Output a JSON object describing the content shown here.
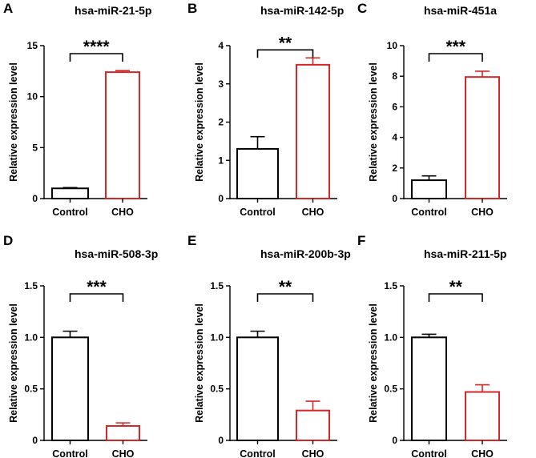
{
  "figure": {
    "colors": {
      "control": "#000000",
      "cho": "#d62728",
      "axis": "#000000"
    }
  },
  "chart_data": [
    {
      "panel": "A",
      "type": "bar",
      "title": "hsa-miR-21-5p",
      "ylabel": "Relative expression level",
      "categories": [
        "Control",
        "CHO"
      ],
      "values": [
        1.0,
        12.4
      ],
      "errors": [
        0.08,
        0.15
      ],
      "ylim": [
        0,
        15
      ],
      "yticks": [
        0,
        5,
        10,
        15
      ],
      "ytick_labels": [
        "0",
        "5",
        "10",
        "15"
      ],
      "significance": "****"
    },
    {
      "panel": "B",
      "type": "bar",
      "title": "hsa-miR-142-5p",
      "ylabel": "Relative expression level",
      "categories": [
        "Control",
        "CHO"
      ],
      "values": [
        1.3,
        3.5
      ],
      "errors": [
        0.32,
        0.18
      ],
      "ylim": [
        0,
        4
      ],
      "yticks": [
        0,
        1,
        2,
        3,
        4
      ],
      "ytick_labels": [
        "0",
        "1",
        "2",
        "3",
        "4"
      ],
      "significance": "**"
    },
    {
      "panel": "C",
      "type": "bar",
      "title": "hsa-miR-451a",
      "ylabel": "Relative expression level",
      "categories": [
        "Control",
        "CHO"
      ],
      "values": [
        1.2,
        7.95
      ],
      "errors": [
        0.28,
        0.38
      ],
      "ylim": [
        0,
        10
      ],
      "yticks": [
        0,
        2,
        4,
        6,
        8,
        10
      ],
      "ytick_labels": [
        "0",
        "2",
        "4",
        "6",
        "8",
        "10"
      ],
      "significance": "***"
    },
    {
      "panel": "D",
      "type": "bar",
      "title": "hsa-miR-508-3p",
      "ylabel": "Relative expression level",
      "categories": [
        "Control",
        "CHO"
      ],
      "values": [
        1.0,
        0.14
      ],
      "errors": [
        0.06,
        0.03
      ],
      "ylim": [
        0,
        1.5
      ],
      "yticks": [
        0,
        0.5,
        1.0,
        1.5
      ],
      "ytick_labels": [
        "0",
        "0.5",
        "1.0",
        "1.5"
      ],
      "significance": "***"
    },
    {
      "panel": "E",
      "type": "bar",
      "title": "hsa-miR-200b-3p",
      "ylabel": "Relative expression level",
      "categories": [
        "Control",
        "CHO"
      ],
      "values": [
        1.0,
        0.29
      ],
      "errors": [
        0.06,
        0.09
      ],
      "ylim": [
        0,
        1.5
      ],
      "yticks": [
        0,
        0.5,
        1.0,
        1.5
      ],
      "ytick_labels": [
        "0",
        "0.5",
        "1.0",
        "1.5"
      ],
      "significance": "**"
    },
    {
      "panel": "F",
      "type": "bar",
      "title": "hsa-miR-211-5p",
      "ylabel": "Relative expression level",
      "categories": [
        "Control",
        "CHO"
      ],
      "values": [
        1.0,
        0.47
      ],
      "errors": [
        0.03,
        0.07
      ],
      "ylim": [
        0,
        1.5
      ],
      "yticks": [
        0,
        0.5,
        1.0,
        1.5
      ],
      "ytick_labels": [
        "0",
        "0.5",
        "1.0",
        "1.5"
      ],
      "significance": "**"
    }
  ]
}
